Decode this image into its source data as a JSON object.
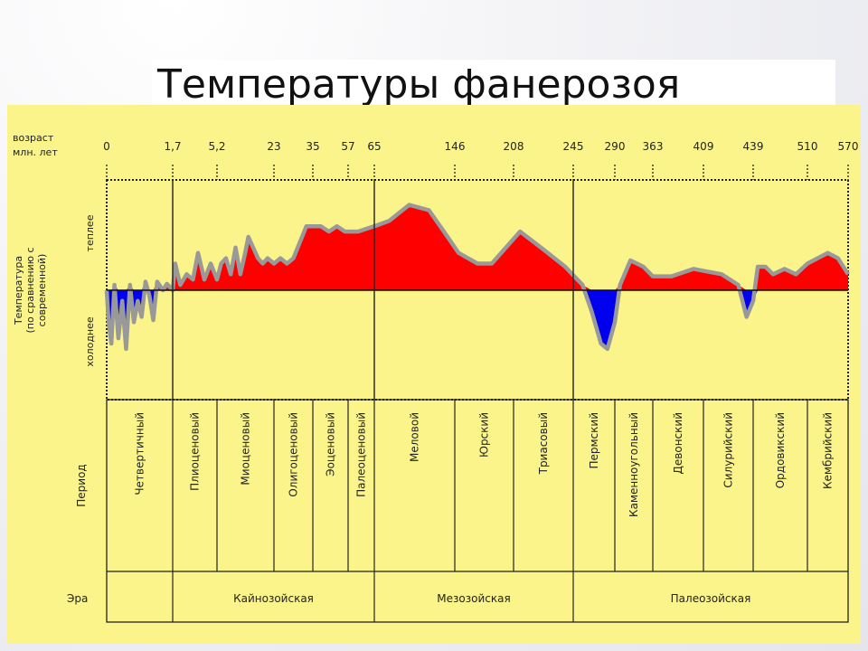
{
  "title": "Температуры фанерозоя",
  "chart_data": {
    "type": "area",
    "title": "Температуры фанерозоя",
    "age_label_lines": [
      "возраст",
      "млн. лет"
    ],
    "y_axis_label_lines": [
      "Температура",
      "(по сравнению с",
      "современной)"
    ],
    "y_warmer": "теплее",
    "y_colder": "холоднее",
    "age_ticks": [
      {
        "value": 0,
        "label": "0"
      },
      {
        "value": 1.7,
        "label": "1,7"
      },
      {
        "value": 5.2,
        "label": "5,2"
      },
      {
        "value": 23,
        "label": "23"
      },
      {
        "value": 35,
        "label": "35"
      },
      {
        "value": 57,
        "label": "57"
      },
      {
        "value": 65,
        "label": "65"
      },
      {
        "value": 146,
        "label": "146"
      },
      {
        "value": 208,
        "label": "208"
      },
      {
        "value": 245,
        "label": "245"
      },
      {
        "value": 290,
        "label": "290"
      },
      {
        "value": 363,
        "label": "363"
      },
      {
        "value": 409,
        "label": "409"
      },
      {
        "value": 439,
        "label": "439"
      },
      {
        "value": 510,
        "label": "510"
      },
      {
        "value": 570,
        "label": "570"
      }
    ],
    "period_row_label": "Период",
    "era_row_label": "Эра",
    "periods": [
      {
        "name": "Четвертичный",
        "from": 0,
        "to": 1.7
      },
      {
        "name": "Плиоценовый",
        "from": 1.7,
        "to": 5.2
      },
      {
        "name": "Миоценовый",
        "from": 5.2,
        "to": 23
      },
      {
        "name": "Олигоценовый",
        "from": 23,
        "to": 35
      },
      {
        "name": "Эоценовый",
        "from": 35,
        "to": 57
      },
      {
        "name": "Палеоценовый",
        "from": 57,
        "to": 65
      },
      {
        "name": "Меловой",
        "from": 65,
        "to": 146
      },
      {
        "name": "Юрский",
        "from": 146,
        "to": 208
      },
      {
        "name": "Триасовый",
        "from": 208,
        "to": 245
      },
      {
        "name": "Пермский",
        "from": 245,
        "to": 290
      },
      {
        "name": "Каменноугольный",
        "from": 290,
        "to": 363
      },
      {
        "name": "Девонский",
        "from": 363,
        "to": 409
      },
      {
        "name": "Силурийский",
        "from": 409,
        "to": 439
      },
      {
        "name": "Ордовикский",
        "from": 439,
        "to": 510
      },
      {
        "name": "Кембрийский",
        "from": 510,
        "to": 570
      }
    ],
    "eras": [
      {
        "name": "Кайнозойская",
        "from": 1.7,
        "to": 65
      },
      {
        "name": "Мезозойская",
        "from": 65,
        "to": 245
      },
      {
        "name": "Палеозойская",
        "from": 245,
        "to": 570
      }
    ],
    "major_boundaries": [
      1.7,
      65,
      245
    ],
    "ylim": [
      -10,
      10
    ],
    "temperature_anomaly": [
      {
        "age": 0,
        "value": 0
      },
      {
        "age": 0.05,
        "value": -3
      },
      {
        "age": 0.12,
        "value": -5
      },
      {
        "age": 0.2,
        "value": 0.5
      },
      {
        "age": 0.3,
        "value": -4.5
      },
      {
        "age": 0.4,
        "value": -1
      },
      {
        "age": 0.5,
        "value": -5.5
      },
      {
        "age": 0.6,
        "value": 0.5
      },
      {
        "age": 0.7,
        "value": -3
      },
      {
        "age": 0.8,
        "value": -1
      },
      {
        "age": 0.9,
        "value": -2.5
      },
      {
        "age": 1.0,
        "value": 0.8
      },
      {
        "age": 1.1,
        "value": -0.5
      },
      {
        "age": 1.2,
        "value": -2.8
      },
      {
        "age": 1.3,
        "value": 0.8
      },
      {
        "age": 1.45,
        "value": 0
      },
      {
        "age": 1.55,
        "value": 0.6
      },
      {
        "age": 1.7,
        "value": 0
      },
      {
        "age": 1.9,
        "value": 2.5
      },
      {
        "age": 2.3,
        "value": 0.5
      },
      {
        "age": 2.8,
        "value": 1.5
      },
      {
        "age": 3.3,
        "value": 1
      },
      {
        "age": 3.7,
        "value": 3.5
      },
      {
        "age": 4.2,
        "value": 1
      },
      {
        "age": 4.7,
        "value": 2.5
      },
      {
        "age": 5.2,
        "value": 1
      },
      {
        "age": 6.5,
        "value": 2.5
      },
      {
        "age": 8,
        "value": 3
      },
      {
        "age": 9.5,
        "value": 1.5
      },
      {
        "age": 11,
        "value": 4
      },
      {
        "age": 12.5,
        "value": 1.5
      },
      {
        "age": 14,
        "value": 3.5
      },
      {
        "age": 15,
        "value": 5
      },
      {
        "age": 16.5,
        "value": 4
      },
      {
        "age": 18,
        "value": 3
      },
      {
        "age": 19.5,
        "value": 2.5
      },
      {
        "age": 21,
        "value": 3
      },
      {
        "age": 23,
        "value": 2.5
      },
      {
        "age": 25,
        "value": 3
      },
      {
        "age": 27,
        "value": 2.5
      },
      {
        "age": 29,
        "value": 3
      },
      {
        "age": 31,
        "value": 4.5
      },
      {
        "age": 33,
        "value": 6
      },
      {
        "age": 35,
        "value": 6
      },
      {
        "age": 40,
        "value": 6
      },
      {
        "age": 45,
        "value": 5.5
      },
      {
        "age": 50,
        "value": 6
      },
      {
        "age": 55,
        "value": 5.5
      },
      {
        "age": 60,
        "value": 5.5
      },
      {
        "age": 65,
        "value": 6
      },
      {
        "age": 80,
        "value": 6.5
      },
      {
        "age": 100,
        "value": 8
      },
      {
        "age": 120,
        "value": 7.5
      },
      {
        "age": 135,
        "value": 5.5
      },
      {
        "age": 150,
        "value": 3.5
      },
      {
        "age": 170,
        "value": 2.5
      },
      {
        "age": 185,
        "value": 2.5
      },
      {
        "age": 200,
        "value": 4
      },
      {
        "age": 212,
        "value": 5.5
      },
      {
        "age": 225,
        "value": 4
      },
      {
        "age": 240,
        "value": 2.2
      },
      {
        "age": 255,
        "value": 0.5
      },
      {
        "age": 265,
        "value": -2
      },
      {
        "age": 275,
        "value": -5
      },
      {
        "age": 282,
        "value": -5.5
      },
      {
        "age": 290,
        "value": -3
      },
      {
        "age": 300,
        "value": 0.5
      },
      {
        "age": 320,
        "value": 2.8
      },
      {
        "age": 345,
        "value": 2.2
      },
      {
        "age": 363,
        "value": 1.3
      },
      {
        "age": 380,
        "value": 1.3
      },
      {
        "age": 400,
        "value": 2
      },
      {
        "age": 420,
        "value": 1.5
      },
      {
        "age": 430,
        "value": 0.5
      },
      {
        "age": 435,
        "value": -2.5
      },
      {
        "age": 439,
        "value": -1
      },
      {
        "age": 445,
        "value": 2.2
      },
      {
        "age": 455,
        "value": 2.2
      },
      {
        "age": 465,
        "value": 1.5
      },
      {
        "age": 480,
        "value": 2
      },
      {
        "age": 495,
        "value": 1.5
      },
      {
        "age": 510,
        "value": 2.5
      },
      {
        "age": 525,
        "value": 3
      },
      {
        "age": 540,
        "value": 3.5
      },
      {
        "age": 555,
        "value": 3
      },
      {
        "age": 570,
        "value": 1.5
      }
    ],
    "colors": {
      "warm": "#ff0000",
      "cold": "#0000ee",
      "outline": "#999999",
      "background": "#faf48a"
    }
  }
}
